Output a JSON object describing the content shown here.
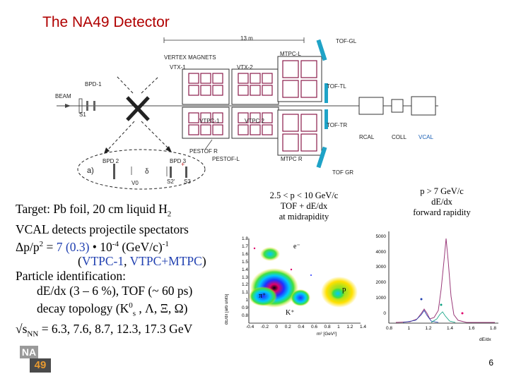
{
  "title": "The NA49 Detector",
  "detector": {
    "length_label": "13 m",
    "beam": "BEAM",
    "bpd1": "BPD-1",
    "s1": "S1",
    "vertex_magnets": "VERTEX MAGNETS",
    "vtx1": "VTX-1",
    "vtx2": "VTX-2",
    "vtpc1": "VTPC-1",
    "vtpc2": "VTPC 2",
    "mtpcl": "MTPC-L",
    "mtpcr": "MTPC R",
    "tofgl": "TOF-GL",
    "toftl": "TOF-TL",
    "toftr": "TOF-TR",
    "tofgr": "TOF GR",
    "rcal": "RCAL",
    "coll": "COLL",
    "vcal": "VCAL",
    "pestofr": "PESTOF R",
    "pestofl": "PESTOF-L",
    "bpd2": "BPD 2",
    "bpd3": "BPD 3",
    "panel_a": "a)",
    "v0": "V0",
    "s2": "S2'",
    "s3": "S3",
    "gamma": "δ"
  },
  "desc": {
    "line1": "Target: Pb foil, 20 cm liquid H",
    "line1_sub": "2",
    "line2": "VCAL detects projectile spectators",
    "line3_a": "Δp/p",
    "line3_sup": "2",
    "line3_b": " = ",
    "line3_val": "7 (0.3)",
    "line3_c": " • 10",
    "line3_exp": "-4",
    "line3_d": " (GeV/c)",
    "line3_exp2": "-1",
    "line4_a": "(",
    "line4_b": "VTPC-1",
    "line4_c": ", ",
    "line4_d": "VTPC+MTPC",
    "line4_e": ")",
    "line5": "Particle identification:",
    "line6": "dE/dx (3 – 6 %), TOF (~ 60 ps)",
    "line7_a": "decay topology (K",
    "line7_sup": "0",
    "line7_sub": "s",
    "line7_b": " , Λ, Ξ, Ω)",
    "line8_a": "√s",
    "line8_sub": "NN",
    "line8_b": " = 6.3, 7.6, 8.7, 12.3, 17.3 GeV"
  },
  "caption_mid": {
    "l1": "2.5 < p < 10 GeV/c",
    "l2": "TOF + dE/dx",
    "l3": "at midrapidity"
  },
  "caption_right": {
    "l1": "p > 7 GeV/c",
    "l2": "dE/dx",
    "l3": "forward rapidity"
  },
  "plot_mid": {
    "ylabel": "dE/dx [arb units]",
    "xlabel": "m² [GeV²]",
    "yticks": [
      "1.8",
      "1.7",
      "1.6",
      "1.5",
      "1.4",
      "1.3",
      "1.2",
      "1.1",
      "1",
      "0.9",
      "0.8"
    ],
    "xticks": [
      "-0.4",
      "-0.2",
      "0",
      "0.2",
      "0.4",
      "0.6",
      "0.8",
      "1",
      "1.2",
      "1.4"
    ],
    "e": "e⁻",
    "pi": "π⁺",
    "k": "K⁺",
    "p": "p"
  },
  "plot_right": {
    "yticks": [
      "5000",
      "4000",
      "3000",
      "2000",
      "1000",
      "0"
    ],
    "xticks": [
      "0.8",
      "1",
      "1.2",
      "1.4",
      "1.6",
      "1.8"
    ],
    "xlabel": "dE/dx"
  },
  "logo_text": "NA49",
  "page_number": "6"
}
